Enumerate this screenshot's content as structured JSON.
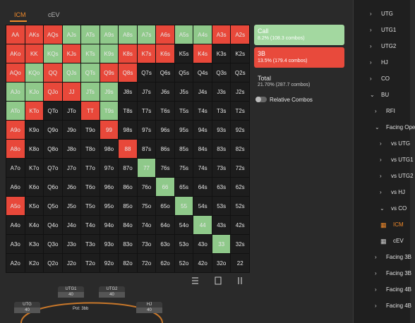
{
  "tabs": [
    {
      "label": "ICM",
      "color": "#f0892a"
    },
    {
      "label": "cEV",
      "color": "#b5b5b5"
    }
  ],
  "grid": {
    "rows": [
      {
        "cells": [
          "AA",
          "AKs",
          "AQs",
          "AJs",
          "ATs",
          "A9s",
          "A8s",
          "A7s",
          "A6s",
          "A5s",
          "A4s",
          "A3s",
          "A2s"
        ],
        "colors": [
          "#e8483a",
          "#e8483a",
          "#e8483a",
          "#8fc98a",
          "#8fc98a",
          "#8fc98a",
          "#8fc98a",
          "#8fc98a",
          "#e8483a",
          "#8fc98a",
          "#8fc98a",
          "#e8483a",
          "#e8483a"
        ]
      },
      {
        "cells": [
          "AKo",
          "KK",
          "KQs",
          "KJs",
          "KTs",
          "K9s",
          "K8s",
          "K7s",
          "K6s",
          "K5s",
          "K4s",
          "K3s",
          "K2s"
        ],
        "colors": [
          "#e8483a",
          "#e8483a",
          "#8fc98a",
          "#e8483a",
          "#8fc98a",
          "#8fc98a",
          "#e8483a",
          "#e8483a",
          "#e8483a",
          "#1d1d1d",
          "#e8483a",
          "#1d1d1d",
          "#1d1d1d"
        ]
      },
      {
        "cells": [
          "AQo",
          "KQo",
          "QQ",
          "QJs",
          "QTs",
          "Q9s",
          "Q8s",
          "Q7s",
          "Q6s",
          "Q5s",
          "Q4s",
          "Q3s",
          "Q2s"
        ],
        "colors": [
          "#e8483a",
          "#8fc98a",
          "#e8483a",
          "#8fc98a",
          "#8fc98a",
          "#e8483a",
          "#e8483a",
          "#1d1d1d",
          "#1d1d1d",
          "#1d1d1d",
          "#1d1d1d",
          "#1d1d1d",
          "#1d1d1d"
        ]
      },
      {
        "cells": [
          "AJo",
          "KJo",
          "QJo",
          "JJ",
          "JTs",
          "J9s",
          "J8s",
          "J7s",
          "J6s",
          "J5s",
          "J4s",
          "J3s",
          "J2s"
        ],
        "colors": [
          "#8fc98a",
          "#8fc98a",
          "#e8483a",
          "#e8483a",
          "#8fc98a",
          "#8fc98a",
          "#1d1d1d",
          "#1d1d1d",
          "#1d1d1d",
          "#1d1d1d",
          "#1d1d1d",
          "#1d1d1d",
          "#1d1d1d"
        ]
      },
      {
        "cells": [
          "ATo",
          "KTo",
          "QTo",
          "JTo",
          "TT",
          "T9s",
          "T8s",
          "T7s",
          "T6s",
          "T5s",
          "T4s",
          "T3s",
          "T2s"
        ],
        "colors": [
          "#8fc98a",
          "#e8483a",
          "#1d1d1d",
          "#1d1d1d",
          "#e8483a",
          "#8fc98a",
          "#1d1d1d",
          "#1d1d1d",
          "#1d1d1d",
          "#1d1d1d",
          "#1d1d1d",
          "#1d1d1d",
          "#1d1d1d"
        ]
      },
      {
        "cells": [
          "A9o",
          "K9o",
          "Q9o",
          "J9o",
          "T9o",
          "99",
          "98s",
          "97s",
          "96s",
          "95s",
          "94s",
          "93s",
          "92s"
        ],
        "colors": [
          "#e8483a",
          "#1d1d1d",
          "#1d1d1d",
          "#1d1d1d",
          "#1d1d1d",
          "#e8483a",
          "#1d1d1d",
          "#1d1d1d",
          "#1d1d1d",
          "#1d1d1d",
          "#1d1d1d",
          "#1d1d1d",
          "#1d1d1d"
        ]
      },
      {
        "cells": [
          "A8o",
          "K8o",
          "Q8o",
          "J8o",
          "T8o",
          "98o",
          "88",
          "87s",
          "86s",
          "85s",
          "84s",
          "83s",
          "82s"
        ],
        "colors": [
          "#e8483a",
          "#1d1d1d",
          "#1d1d1d",
          "#1d1d1d",
          "#1d1d1d",
          "#1d1d1d",
          "#e8483a",
          "#1d1d1d",
          "#1d1d1d",
          "#1d1d1d",
          "#1d1d1d",
          "#1d1d1d",
          "#1d1d1d"
        ]
      },
      {
        "cells": [
          "A7o",
          "K7o",
          "Q7o",
          "J7o",
          "T7o",
          "97o",
          "87o",
          "77",
          "76s",
          "75s",
          "74s",
          "73s",
          "72s"
        ],
        "colors": [
          "#1d1d1d",
          "#1d1d1d",
          "#1d1d1d",
          "#1d1d1d",
          "#1d1d1d",
          "#1d1d1d",
          "#1d1d1d",
          "#8fc98a",
          "#1d1d1d",
          "#1d1d1d",
          "#1d1d1d",
          "#1d1d1d",
          "#1d1d1d"
        ]
      },
      {
        "cells": [
          "A6o",
          "K6o",
          "Q6o",
          "J6o",
          "T6o",
          "96o",
          "86o",
          "76o",
          "66",
          "65s",
          "64s",
          "63s",
          "62s"
        ],
        "colors": [
          "#1d1d1d",
          "#1d1d1d",
          "#1d1d1d",
          "#1d1d1d",
          "#1d1d1d",
          "#1d1d1d",
          "#1d1d1d",
          "#1d1d1d",
          "#8fc98a",
          "#1d1d1d",
          "#1d1d1d",
          "#1d1d1d",
          "#1d1d1d"
        ]
      },
      {
        "cells": [
          "A5o",
          "K5o",
          "Q5o",
          "J5o",
          "T5o",
          "95o",
          "85o",
          "75o",
          "65o",
          "55",
          "54s",
          "53s",
          "52s"
        ],
        "colors": [
          "#e8483a",
          "#1d1d1d",
          "#1d1d1d",
          "#1d1d1d",
          "#1d1d1d",
          "#1d1d1d",
          "#1d1d1d",
          "#1d1d1d",
          "#1d1d1d",
          "#8fc98a",
          "#1d1d1d",
          "#1d1d1d",
          "#1d1d1d"
        ]
      },
      {
        "cells": [
          "A4o",
          "K4o",
          "Q4o",
          "J4o",
          "T4o",
          "94o",
          "84o",
          "74o",
          "64o",
          "54o",
          "44",
          "43s",
          "42s"
        ],
        "colors": [
          "#1d1d1d",
          "#1d1d1d",
          "#1d1d1d",
          "#1d1d1d",
          "#1d1d1d",
          "#1d1d1d",
          "#1d1d1d",
          "#1d1d1d",
          "#1d1d1d",
          "#1d1d1d",
          "#8fc98a",
          "#1d1d1d",
          "#1d1d1d"
        ]
      },
      {
        "cells": [
          "A3o",
          "K3o",
          "Q3o",
          "J3o",
          "T3o",
          "93o",
          "83o",
          "73o",
          "63o",
          "53o",
          "43o",
          "33",
          "32s"
        ],
        "colors": [
          "#1d1d1d",
          "#1d1d1d",
          "#1d1d1d",
          "#1d1d1d",
          "#1d1d1d",
          "#1d1d1d",
          "#1d1d1d",
          "#1d1d1d",
          "#1d1d1d",
          "#1d1d1d",
          "#1d1d1d",
          "#8fc98a",
          "#1d1d1d"
        ]
      },
      {
        "cells": [
          "A2o",
          "K2o",
          "Q2o",
          "J2o",
          "T2o",
          "92o",
          "82o",
          "72o",
          "62o",
          "52o",
          "42o",
          "32o",
          "22"
        ],
        "colors": [
          "#1d1d1d",
          "#1d1d1d",
          "#1d1d1d",
          "#1d1d1d",
          "#1d1d1d",
          "#1d1d1d",
          "#1d1d1d",
          "#1d1d1d",
          "#1d1d1d",
          "#1d1d1d",
          "#1d1d1d",
          "#1d1d1d",
          "#1d1d1d"
        ]
      }
    ]
  },
  "legend": [
    {
      "label": "Call",
      "detail": "8.2% (108.3 combos)",
      "color": "#a3d8a0"
    },
    {
      "label": "3B",
      "detail": "13.5% (179.4 combos)",
      "color": "#e84a3c"
    }
  ],
  "total": {
    "label": "Total",
    "detail": "21.70% (287.7 combos)"
  },
  "toggle": "Relative Combos",
  "table": {
    "seats": [
      {
        "name": "UTG1",
        "stack": 40
      },
      {
        "name": "UTG2",
        "stack": 40
      },
      {
        "name": "UTG",
        "stack": 40
      },
      {
        "name": "HJ",
        "stack": 40
      }
    ],
    "pot": "Pot: 3bb"
  },
  "sidebar": [
    {
      "label": "UTG"
    },
    {
      "label": "UTG1"
    },
    {
      "label": "UTG2"
    },
    {
      "label": "HJ"
    },
    {
      "label": "CO"
    },
    {
      "label": "BU",
      "children": [
        {
          "label": "RFI"
        },
        {
          "label": "Facing Ope",
          "children": [
            {
              "label": "vs UTG"
            },
            {
              "label": "vs UTG1"
            },
            {
              "label": "vs UTG2"
            },
            {
              "label": "vs HJ"
            },
            {
              "label": "vs CO",
              "children": [
                {
                  "label": "ICM",
                  "color": "#f0892a"
                },
                {
                  "label": "cEV"
                }
              ]
            }
          ]
        },
        {
          "label": "Facing 3B"
        },
        {
          "label": "Facing 3B"
        },
        {
          "label": "Facing 4B"
        },
        {
          "label": "Facing 4B"
        }
      ]
    }
  ]
}
